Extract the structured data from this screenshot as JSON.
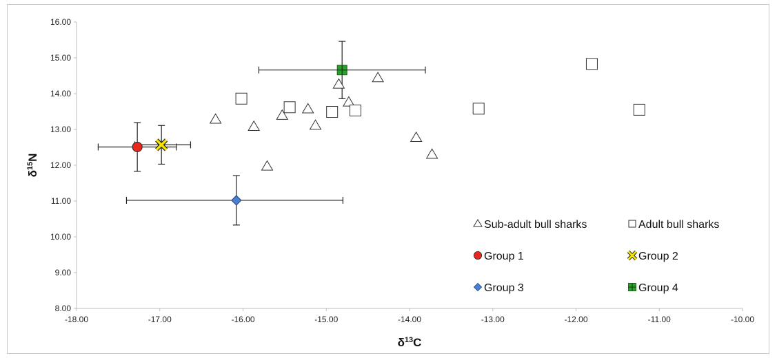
{
  "chart_data": {
    "type": "scatter",
    "xlabel": "δ13C",
    "ylabel": "δ15N",
    "xlim": [
      -18,
      -10
    ],
    "ylim": [
      8,
      16
    ],
    "x_ticks": [
      "-18.00",
      "-17.00",
      "-16.00",
      "-15.00",
      "-14.00",
      "-13.00",
      "-12.00",
      "-11.00",
      "-10.00"
    ],
    "y_ticks": [
      "8.00",
      "9.00",
      "10.00",
      "11.00",
      "12.00",
      "13.00",
      "14.00",
      "15.00",
      "16.00"
    ],
    "grid": false,
    "legend_position": "bottom-right",
    "series": [
      {
        "name": "Sub-adult bull sharks",
        "marker": "triangle",
        "color": "#ffffff",
        "points": [
          {
            "x": -16.33,
            "y": 13.28
          },
          {
            "x": -15.87,
            "y": 13.08
          },
          {
            "x": -15.71,
            "y": 11.97
          },
          {
            "x": -15.53,
            "y": 13.39
          },
          {
            "x": -15.22,
            "y": 13.57
          },
          {
            "x": -15.13,
            "y": 13.11
          },
          {
            "x": -14.85,
            "y": 14.26
          },
          {
            "x": -14.73,
            "y": 13.76
          },
          {
            "x": -14.38,
            "y": 14.44
          },
          {
            "x": -13.92,
            "y": 12.77
          },
          {
            "x": -13.73,
            "y": 12.3
          }
        ]
      },
      {
        "name": "Adult bull sharks",
        "marker": "square",
        "color": "#ffffff",
        "points": [
          {
            "x": -16.02,
            "y": 13.86
          },
          {
            "x": -15.44,
            "y": 13.62
          },
          {
            "x": -14.93,
            "y": 13.49
          },
          {
            "x": -14.65,
            "y": 13.53
          },
          {
            "x": -13.17,
            "y": 13.58
          },
          {
            "x": -11.81,
            "y": 14.83
          },
          {
            "x": -11.24,
            "y": 13.55
          }
        ]
      },
      {
        "name": "Group 1",
        "marker": "circle",
        "color": "#e8281e",
        "points": [
          {
            "x": -17.27,
            "y": 12.51,
            "xerr_lo": 0.47,
            "xerr_hi": 0.47,
            "yerr": 0.68
          }
        ]
      },
      {
        "name": "Group 2",
        "marker": "x",
        "color": "#f5e400",
        "points": [
          {
            "x": -16.98,
            "y": 12.57,
            "xerr_lo": 0.32,
            "xerr_hi": 0.35,
            "yerr": 0.54
          }
        ]
      },
      {
        "name": "Group 3",
        "marker": "diamond",
        "color": "#4a7fd1",
        "points": [
          {
            "x": -16.08,
            "y": 11.02,
            "xerr_lo": 1.32,
            "xerr_hi": 1.28,
            "yerr": 0.69
          }
        ]
      },
      {
        "name": "Group 4",
        "marker": "square-cross",
        "color": "#2e9e2e",
        "points": [
          {
            "x": -14.81,
            "y": 14.66,
            "xerr_lo": 1.0,
            "xerr_hi": 1.0,
            "yerr": 0.8
          }
        ]
      }
    ]
  }
}
